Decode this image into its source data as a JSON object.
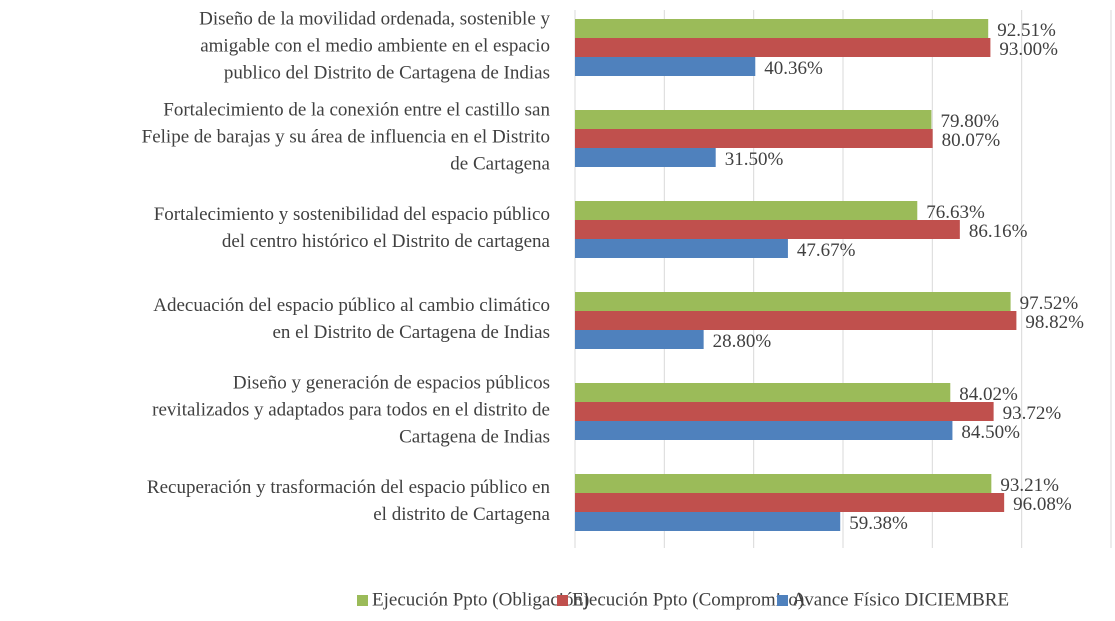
{
  "chart_data": {
    "type": "hbar",
    "categories": [
      [
        "Diseño de la movilidad ordenada, sostenible y",
        "amigable con el medio ambiente en el espacio",
        "publico del Distrito de Cartagena de Indias"
      ],
      [
        "Fortalecimiento de la conexión entre el castillo san",
        "Felipe de barajas y su área de influencia en el Distrito",
        "de Cartagena"
      ],
      [
        "Fortalecimiento y sostenibilidad del espacio público",
        "del centro histórico el Distrito de cartagena"
      ],
      [
        "Adecuación del espacio público al cambio climático",
        "en el Distrito de Cartagena de Indias"
      ],
      [
        "Diseño y generación de espacios públicos",
        "revitalizados y adaptados para todos en el distrito de",
        "Cartagena de Indias"
      ],
      [
        "Recuperación y trasformación del espacio público en",
        "el distrito de Cartagena"
      ]
    ],
    "series": [
      {
        "name": "Ejecución Ppto (Obligación)",
        "color": "#9bbb59",
        "values": [
          92.51,
          79.8,
          76.63,
          97.52,
          84.02,
          93.21
        ],
        "value_labels": [
          "92.51%",
          "79.80%",
          "76.63%",
          "97.52%",
          "84.02%",
          "93.21%"
        ]
      },
      {
        "name": "Ejecución Ppto (Compromiso)",
        "color": "#c0504d",
        "values": [
          93.0,
          80.07,
          86.16,
          98.82,
          93.72,
          96.08
        ],
        "value_labels": [
          "93.00%",
          "80.07%",
          "86.16%",
          "98.82%",
          "93.72%",
          "96.08%"
        ]
      },
      {
        "name": "Avance Físico DICIEMBRE",
        "color": "#4f81bd",
        "values": [
          40.36,
          31.5,
          47.67,
          28.8,
          84.5,
          59.38
        ],
        "value_labels": [
          "40.36%",
          "31.50%",
          "47.67%",
          "28.80%",
          "84.50%",
          "59.38%"
        ]
      }
    ],
    "xlim": [
      0,
      120
    ],
    "xticks": [
      0,
      20,
      40,
      60,
      80,
      100,
      120
    ],
    "grid": true,
    "legend": "bottom"
  }
}
